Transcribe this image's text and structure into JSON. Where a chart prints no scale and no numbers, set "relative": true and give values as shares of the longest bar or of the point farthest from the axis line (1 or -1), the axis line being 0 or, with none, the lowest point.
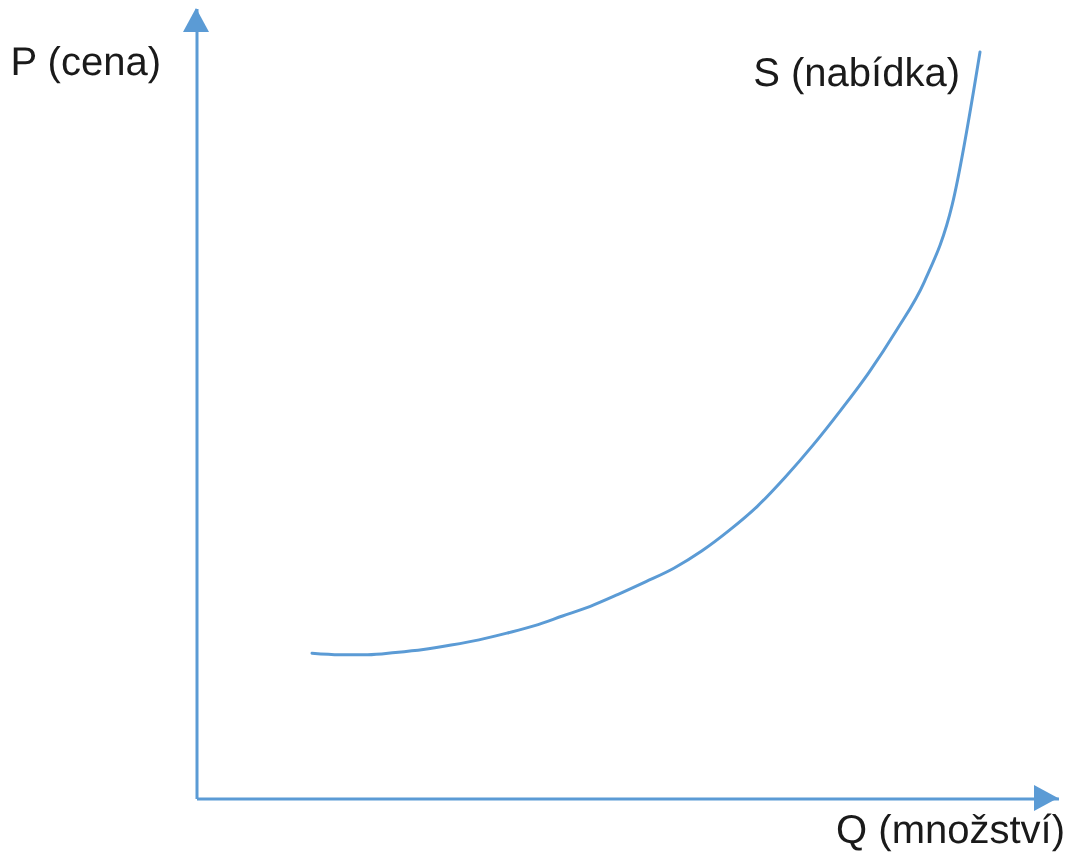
{
  "chart_data": {
    "type": "line",
    "relative": true,
    "xlabel": "Q (množství)",
    "ylabel": "P (cena)",
    "categories": [
      null,
      null,
      null,
      null,
      null,
      null,
      null,
      null,
      null,
      null,
      null,
      null,
      null,
      null,
      null,
      null,
      null,
      null,
      null,
      null,
      null,
      null,
      null,
      null,
      null
    ],
    "series": [
      {
        "name": "S (nabídka)",
        "color": "#5b9bd5",
        "values": [
          0.194,
          0.192,
          0.192,
          0.195,
          0.199,
          0.205,
          0.212,
          0.221,
          0.231,
          0.244,
          0.257,
          0.273,
          0.29,
          0.308,
          0.331,
          0.359,
          0.391,
          0.43,
          0.473,
          0.52,
          0.57,
          0.627,
          0.692,
          0.795,
          1
        ]
      }
    ],
    "grid": false,
    "legend": false
  }
}
